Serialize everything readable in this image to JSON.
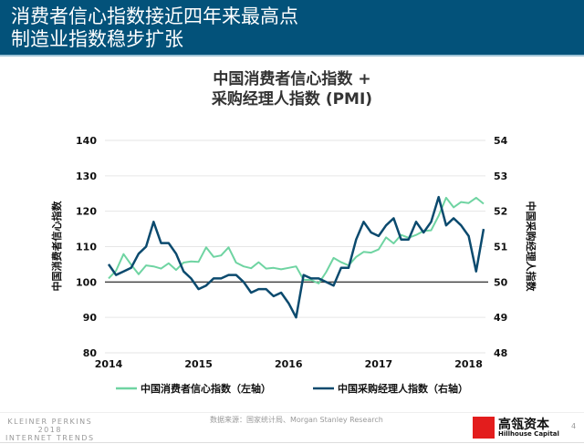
{
  "header": {
    "line1": "消费者信心指数接近四年来最高点",
    "line2": "制造业指数稳步扩张"
  },
  "colors": {
    "header": "#03527a",
    "consumer": "#6fd4a2",
    "pmi": "#0b4a6e"
  },
  "chart_data": {
    "type": "line",
    "title": "中国消费者信心指数 + 采购经理人指数 (PMI)",
    "title_lines": [
      "中国消费者信心指数 +",
      "采购经理人指数 (PMI)"
    ],
    "ylabel": "中国消费者信心指数",
    "y2label": "中国采购经理人指数",
    "ylim": [
      80,
      140
    ],
    "y2lim": [
      48,
      54
    ],
    "yticks": [
      "80",
      "90",
      "100",
      "110",
      "120",
      "130",
      "140"
    ],
    "y2ticks": [
      "48",
      "49",
      "50",
      "51",
      "52",
      "53",
      "54"
    ],
    "xticks": [
      "2014",
      "2015",
      "2016",
      "2017",
      "2018"
    ],
    "x_start": "2014-01",
    "x_end": "2018-03",
    "x_frequency": "monthly",
    "grid": true,
    "legend": "bottom",
    "series": [
      {
        "name": "中国消费者信心指数（左轴）",
        "axis": "left",
        "values": [
          101.0,
          103.2,
          107.9,
          104.9,
          102.2,
          104.7,
          104.4,
          103.8,
          105.3,
          103.4,
          105.5,
          105.8,
          105.7,
          109.8,
          107.1,
          107.5,
          109.8,
          105.5,
          104.4,
          103.9,
          105.6,
          103.8,
          104.0,
          103.6,
          104.0,
          104.4,
          100.6,
          100.6,
          99.6,
          102.8,
          106.8,
          105.6,
          104.7,
          107.1,
          108.5,
          108.3,
          109.2,
          112.6,
          110.9,
          113.3,
          112.5,
          113.3,
          114.4,
          114.6,
          118.7,
          123.8,
          121.1,
          122.6,
          122.3,
          123.8,
          122.1
        ]
      },
      {
        "name": "中国采购经理人指数（右轴）",
        "axis": "right",
        "values": [
          50.5,
          50.2,
          50.3,
          50.4,
          50.8,
          51.0,
          51.7,
          51.1,
          51.1,
          50.8,
          50.3,
          50.1,
          49.8,
          49.9,
          50.1,
          50.1,
          50.2,
          50.2,
          50.0,
          49.7,
          49.8,
          49.8,
          49.6,
          49.7,
          49.4,
          49.0,
          50.2,
          50.1,
          50.1,
          50.0,
          49.9,
          50.4,
          50.4,
          51.2,
          51.7,
          51.4,
          51.3,
          51.6,
          51.8,
          51.2,
          51.2,
          51.7,
          51.4,
          51.7,
          52.4,
          51.6,
          51.8,
          51.6,
          51.3,
          50.3,
          51.5
        ]
      }
    ]
  },
  "footer": {
    "brand_line1": "KLEINER PERKINS",
    "brand_line2": "2018",
    "brand_line3": "INTERNET TRENDS",
    "source": "数据来源：国家统计局、Morgan Stanley Research",
    "logo_cn": "高瓴资本",
    "logo_en": "Hillhouse Capital",
    "logo_mark": "HILLHOUSE",
    "page": "4"
  }
}
